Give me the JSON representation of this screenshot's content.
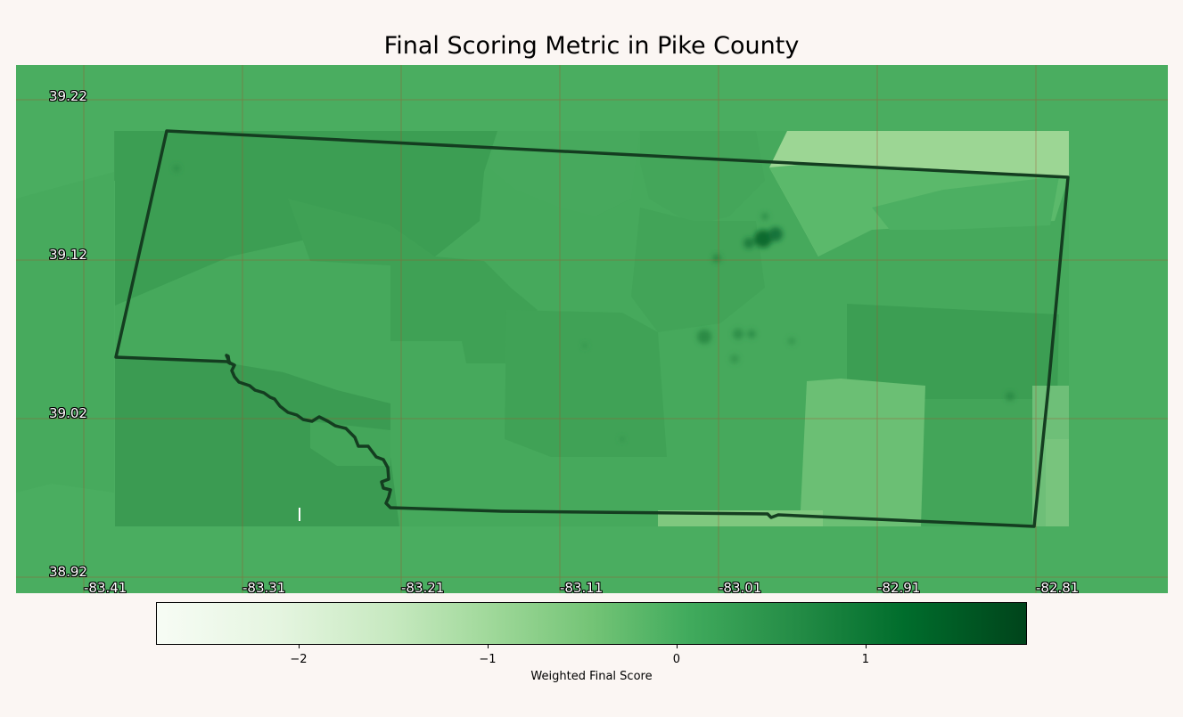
{
  "title": "Final Scoring Metric in Pike County",
  "map": {
    "lat_labels": [
      "39.22",
      "39.12",
      "39.02",
      "38.92"
    ],
    "lon_labels": [
      "-83.41",
      "-83.31",
      "-83.21",
      "-83.11",
      "-83.01",
      "-82.91",
      "-82.81"
    ],
    "background_color": "#4aad60",
    "boundary_color": "#143d20",
    "gridline_color": "#a0522d",
    "gridlines": "on"
  },
  "colorbar": {
    "label": "Weighted Final Score",
    "min": -2.75,
    "max": 1.85,
    "ticks": [
      "−2",
      "−1",
      "0",
      "1"
    ],
    "tick_values": [
      -2,
      -1,
      0,
      1
    ],
    "colormap": "Greens"
  }
}
